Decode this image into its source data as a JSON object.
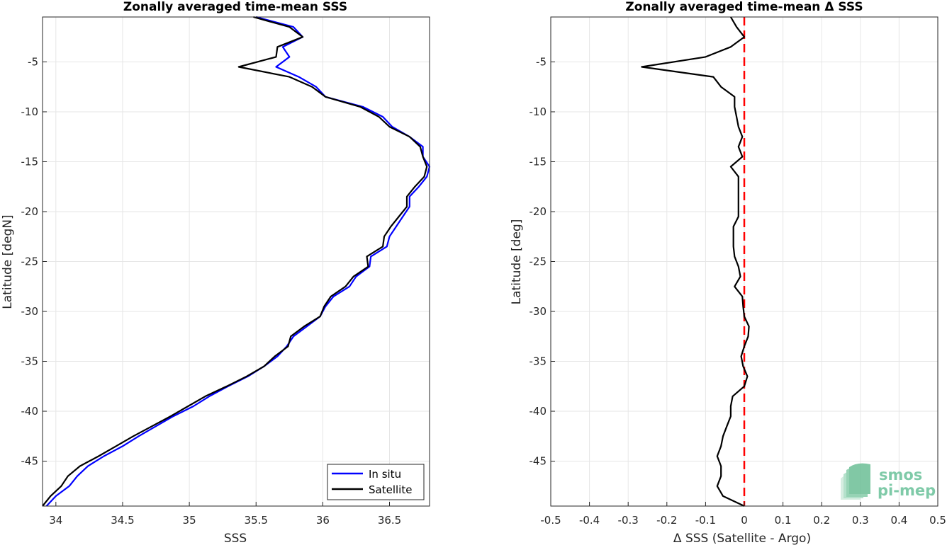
{
  "chart_data": [
    {
      "type": "line",
      "title": "Zonally averaged time-mean SSS",
      "xlabel": "SSS",
      "ylabel": "Latitude [degN]",
      "xlim": [
        33.9,
        36.8
      ],
      "ylim": [
        -49.5,
        -0.5
      ],
      "xticks": [
        34,
        34.5,
        35,
        35.5,
        36,
        36.5
      ],
      "yticks": [
        -5,
        -10,
        -15,
        -20,
        -25,
        -30,
        -35,
        -40,
        -45
      ],
      "grid": true,
      "legend_position": "bottom-right",
      "series": [
        {
          "name": "In situ",
          "color": "#0000ff",
          "points": [
            [
              35.5,
              -0.5
            ],
            [
              35.78,
              -1.5
            ],
            [
              35.85,
              -2.5
            ],
            [
              35.7,
              -3.5
            ],
            [
              35.75,
              -4.5
            ],
            [
              35.65,
              -5.5
            ],
            [
              35.82,
              -6.5
            ],
            [
              35.95,
              -7.5
            ],
            [
              36.02,
              -8.5
            ],
            [
              36.3,
              -9.5
            ],
            [
              36.45,
              -10.5
            ],
            [
              36.52,
              -11.5
            ],
            [
              36.65,
              -12.5
            ],
            [
              36.75,
              -13.5
            ],
            [
              36.75,
              -14.5
            ],
            [
              36.8,
              -15.5
            ],
            [
              36.78,
              -16.5
            ],
            [
              36.72,
              -17.5
            ],
            [
              36.65,
              -18.5
            ],
            [
              36.65,
              -19.5
            ],
            [
              36.6,
              -20.5
            ],
            [
              36.55,
              -21.5
            ],
            [
              36.5,
              -22.5
            ],
            [
              36.48,
              -23.5
            ],
            [
              36.36,
              -24.5
            ],
            [
              36.35,
              -25.5
            ],
            [
              36.25,
              -26.5
            ],
            [
              36.2,
              -27.5
            ],
            [
              36.08,
              -28.5
            ],
            [
              36.02,
              -29.5
            ],
            [
              35.98,
              -30.5
            ],
            [
              35.88,
              -31.5
            ],
            [
              35.78,
              -32.5
            ],
            [
              35.73,
              -33.5
            ],
            [
              35.66,
              -34.5
            ],
            [
              35.56,
              -35.5
            ],
            [
              35.44,
              -36.5
            ],
            [
              35.29,
              -37.5
            ],
            [
              35.15,
              -38.5
            ],
            [
              35.03,
              -39.5
            ],
            [
              34.88,
              -40.5
            ],
            [
              34.75,
              -41.5
            ],
            [
              34.62,
              -42.5
            ],
            [
              34.5,
              -43.5
            ],
            [
              34.36,
              -44.5
            ],
            [
              34.24,
              -45.5
            ],
            [
              34.16,
              -46.5
            ],
            [
              34.1,
              -47.5
            ],
            [
              34.0,
              -48.5
            ],
            [
              33.93,
              -49.5
            ]
          ]
        },
        {
          "name": "Satellite",
          "color": "#000000",
          "points": [
            [
              35.48,
              -0.5
            ],
            [
              35.75,
              -1.5
            ],
            [
              35.85,
              -2.5
            ],
            [
              35.66,
              -3.5
            ],
            [
              35.65,
              -4.5
            ],
            [
              35.37,
              -5.5
            ],
            [
              35.75,
              -6.5
            ],
            [
              35.92,
              -7.5
            ],
            [
              36.02,
              -8.5
            ],
            [
              36.28,
              -9.5
            ],
            [
              36.42,
              -10.5
            ],
            [
              36.5,
              -11.5
            ],
            [
              36.65,
              -12.5
            ],
            [
              36.73,
              -13.5
            ],
            [
              36.75,
              -14.5
            ],
            [
              36.78,
              -15.5
            ],
            [
              36.76,
              -16.5
            ],
            [
              36.69,
              -17.5
            ],
            [
              36.63,
              -18.5
            ],
            [
              36.63,
              -19.5
            ],
            [
              36.57,
              -20.5
            ],
            [
              36.51,
              -21.5
            ],
            [
              36.46,
              -22.5
            ],
            [
              36.45,
              -23.5
            ],
            [
              36.33,
              -24.5
            ],
            [
              36.34,
              -25.5
            ],
            [
              36.23,
              -26.5
            ],
            [
              36.17,
              -27.5
            ],
            [
              36.06,
              -28.5
            ],
            [
              36.01,
              -29.5
            ],
            [
              35.98,
              -30.5
            ],
            [
              35.86,
              -31.5
            ],
            [
              35.76,
              -32.5
            ],
            [
              35.74,
              -33.5
            ],
            [
              35.64,
              -34.5
            ],
            [
              35.56,
              -35.5
            ],
            [
              35.43,
              -36.5
            ],
            [
              35.28,
              -37.5
            ],
            [
              35.12,
              -38.5
            ],
            [
              34.99,
              -39.5
            ],
            [
              34.86,
              -40.5
            ],
            [
              34.72,
              -41.5
            ],
            [
              34.58,
              -42.5
            ],
            [
              34.45,
              -43.5
            ],
            [
              34.32,
              -44.5
            ],
            [
              34.18,
              -45.5
            ],
            [
              34.09,
              -46.5
            ],
            [
              34.04,
              -47.5
            ],
            [
              33.96,
              -48.5
            ],
            [
              33.9,
              -49.5
            ]
          ]
        }
      ]
    },
    {
      "type": "line",
      "title": "Zonally averaged time-mean Δ SSS",
      "xlabel": "Δ SSS (Satellite - Argo)",
      "ylabel": "Latitude [deg]",
      "xlim": [
        -0.5,
        0.5
      ],
      "ylim": [
        -49.5,
        -0.5
      ],
      "xticks": [
        -0.5,
        -0.4,
        -0.3,
        -0.2,
        -0.1,
        0,
        0.1,
        0.2,
        0.3,
        0.4,
        0.5
      ],
      "yticks": [
        -5,
        -10,
        -15,
        -20,
        -25,
        -30,
        -35,
        -40,
        -45
      ],
      "grid": true,
      "reference_line": {
        "x": 0,
        "color": "#ff0000",
        "style": "dashed"
      },
      "series": [
        {
          "color": "#000000",
          "points": [
            [
              -0.035,
              -0.5
            ],
            [
              -0.02,
              -1.5
            ],
            [
              0.0,
              -2.5
            ],
            [
              -0.035,
              -3.5
            ],
            [
              -0.1,
              -4.5
            ],
            [
              -0.265,
              -5.5
            ],
            [
              -0.08,
              -6.5
            ],
            [
              -0.06,
              -7.5
            ],
            [
              -0.025,
              -8.5
            ],
            [
              -0.025,
              -9.5
            ],
            [
              -0.02,
              -10.5
            ],
            [
              -0.015,
              -11.5
            ],
            [
              -0.005,
              -12.5
            ],
            [
              -0.015,
              -13.5
            ],
            [
              -0.005,
              -14.5
            ],
            [
              -0.035,
              -15.5
            ],
            [
              -0.015,
              -16.5
            ],
            [
              -0.015,
              -17.5
            ],
            [
              -0.015,
              -18.5
            ],
            [
              -0.015,
              -19.5
            ],
            [
              -0.015,
              -20.5
            ],
            [
              -0.028,
              -21.5
            ],
            [
              -0.028,
              -22.5
            ],
            [
              -0.028,
              -23.5
            ],
            [
              -0.025,
              -24.5
            ],
            [
              -0.015,
              -25.5
            ],
            [
              -0.01,
              -26.5
            ],
            [
              -0.025,
              -27.5
            ],
            [
              -0.005,
              -28.5
            ],
            [
              -0.003,
              -29.5
            ],
            [
              0.0,
              -30.5
            ],
            [
              0.012,
              -31.5
            ],
            [
              0.01,
              -32.5
            ],
            [
              0.0,
              -33.5
            ],
            [
              -0.008,
              -34.5
            ],
            [
              -0.003,
              -35.5
            ],
            [
              0.008,
              -36.5
            ],
            [
              0.0,
              -37.5
            ],
            [
              -0.03,
              -38.5
            ],
            [
              -0.035,
              -39.5
            ],
            [
              -0.035,
              -40.5
            ],
            [
              -0.045,
              -41.5
            ],
            [
              -0.055,
              -42.5
            ],
            [
              -0.06,
              -43.5
            ],
            [
              -0.07,
              -44.5
            ],
            [
              -0.06,
              -45.5
            ],
            [
              -0.06,
              -46.5
            ],
            [
              -0.07,
              -47.5
            ],
            [
              -0.055,
              -48.5
            ],
            [
              0.0,
              -49.5
            ]
          ]
        }
      ]
    }
  ],
  "logo": {
    "line1": "smos",
    "line2": "pi-mep"
  }
}
